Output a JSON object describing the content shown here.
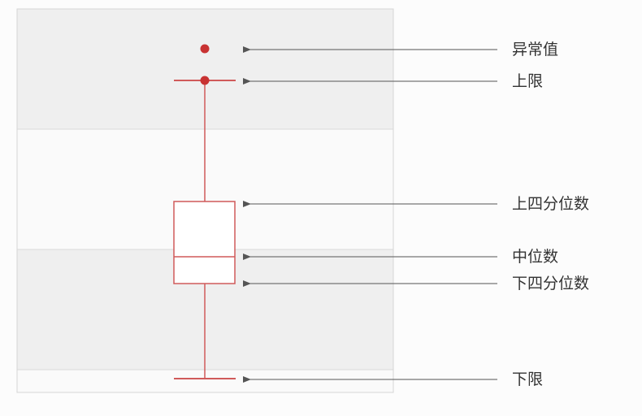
{
  "diagram": {
    "labels": {
      "outlier": "异常值",
      "upper_limit": "上限",
      "upper_quartile": "上四分位数",
      "median": "中位数",
      "lower_quartile": "下四分位数",
      "lower_limit": "下限"
    },
    "colors": {
      "box_stroke": "#d05a5a",
      "point_fill": "#c83232",
      "band_shaded": "#efefef",
      "band_plain": "#fafafa",
      "frame": "#d6d6d6",
      "arrow": "#555555",
      "label_text": "#333333"
    }
  }
}
